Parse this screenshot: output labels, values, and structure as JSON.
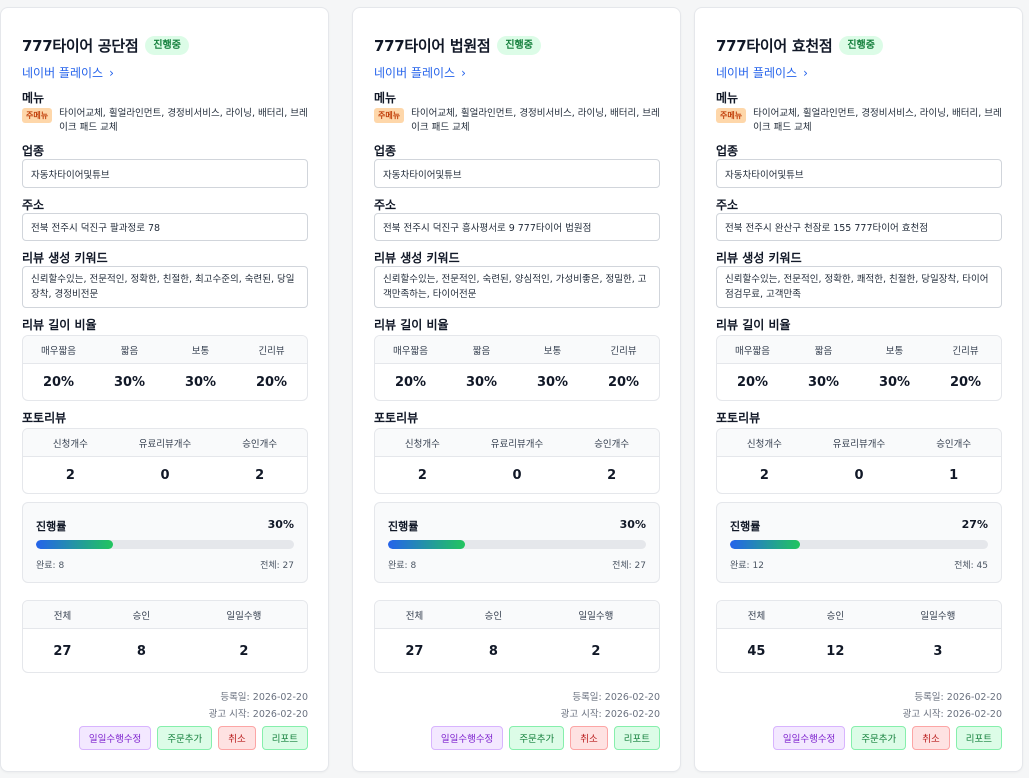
{
  "labels": {
    "naver_place": "네이버 플레이스",
    "menu": "메뉴",
    "main_menu_tag": "주메뉴",
    "category": "업종",
    "address": "주소",
    "review_keywords": "리뷰 생성 키워드",
    "review_length_ratio": "리뷰 길이 비율",
    "photo_review": "포토리뷰",
    "progress": "진행률",
    "done_prefix": "완료: ",
    "total_prefix": "전체: ",
    "registered_prefix": "등록일: ",
    "ad_start_prefix": "광고 시작: ",
    "length_headers": [
      "매우짧음",
      "짧음",
      "보통",
      "긴리뷰"
    ],
    "photo_headers": [
      "신청개수",
      "유료리뷰개수",
      "승인개수"
    ],
    "summary_headers": [
      "전체",
      "승인",
      "일일수행"
    ],
    "buttons": {
      "edit_daily": "일일수행수정",
      "add_order": "주문추가",
      "cancel": "취소",
      "report": "리포트"
    }
  },
  "colors": {
    "link": "#2563eb",
    "status_bg": "#dcfce7",
    "status_text": "#15803d",
    "menu_tag_bg": "#fed7aa",
    "progress_start": "#2563eb",
    "progress_end": "#22c55e"
  },
  "cards": [
    {
      "name": "777타이어 법원점",
      "status": "진행중",
      "menu": "타이어교체, 휠얼라인먼트, 경정비서비스, 라이닝, 배터리, 브레이크 패드 교체",
      "category": "자동차타이어및튜브",
      "address": "전북 전주시 덕진구 흥사평서로 9 777타이어 법원점",
      "keywords": "신뢰할수있는, 전문적인, 숙련된, 양심적인, 가성비좋은, 정밀한, 고객만족하는, 타이어전문",
      "length_ratio": [
        "20%",
        "30%",
        "30%",
        "20%"
      ],
      "photo": [
        "2",
        "0",
        "2"
      ],
      "progress_pct": "30%",
      "progress_fraction": 0.3,
      "done": "8",
      "total": "27",
      "summary": [
        "27",
        "8",
        "2"
      ],
      "registered": "2026-02-20",
      "ad_start": "2026-02-20"
    },
    {
      "name": "777타이어 효천점",
      "status": "진행중",
      "menu": "타이어교체, 휠얼라인먼트, 경정비서비스, 라이닝, 배터리, 브레이크 패드 교체",
      "category": "자동차타이어및튜브",
      "address": "전북 전주시 완산구 천잠로 155 777타이어 효천점",
      "keywords": "신뢰할수있는, 전문적인, 정확한, 쾌적한, 친절한, 당일장착, 타이어점검무료, 고객만족",
      "length_ratio": [
        "20%",
        "30%",
        "30%",
        "20%"
      ],
      "photo": [
        "2",
        "0",
        "1"
      ],
      "progress_pct": "27%",
      "progress_fraction": 0.27,
      "done": "12",
      "total": "45",
      "summary": [
        "45",
        "12",
        "3"
      ],
      "registered": "2026-02-20",
      "ad_start": "2026-02-20"
    },
    {
      "name": "777타이어 공단점",
      "status": "진행중",
      "menu": "타이어교체, 휠얼라인먼트, 경정비서비스, 라이닝, 배터리, 브레이크 패드 교체",
      "category": "자동차타이어및튜브",
      "address": "전북 전주시 덕진구 팔과정로 78",
      "keywords": "신뢰할수있는, 전문적인, 정확한, 친절한, 최고수준의, 숙련된, 당일장착, 경정비전문",
      "length_ratio": [
        "20%",
        "30%",
        "30%",
        "20%"
      ],
      "photo": [
        "2",
        "0",
        "2"
      ],
      "progress_pct": "30%",
      "progress_fraction": 0.3,
      "done": "8",
      "total": "27",
      "summary": [
        "27",
        "8",
        "2"
      ],
      "registered": "2026-02-20",
      "ad_start": "2026-02-20"
    }
  ]
}
